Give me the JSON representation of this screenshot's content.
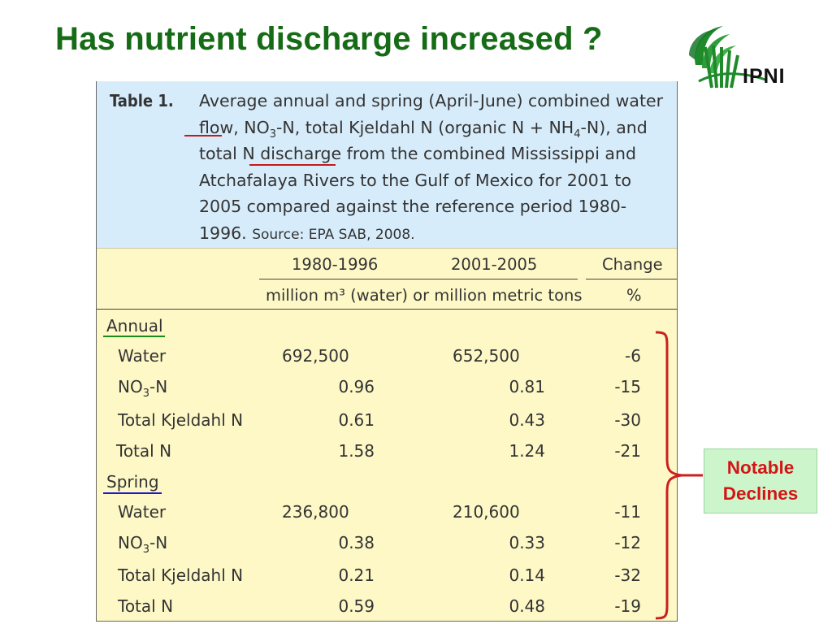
{
  "slide": {
    "title": "Has nutrient discharge increased ?",
    "logo_text": "IPNI"
  },
  "table": {
    "label": "Table 1.",
    "caption_lines": [
      "Average annual and spring (April-June) combined water",
      "flow, NO3-N, total Kjeldahl N (organic N + NH4-N), and",
      "total N discharge from the combined Mississippi and",
      "Atchafalaya Rivers to the Gulf of Mexico for 2001 to",
      "2005 compared against the reference period 1980-",
      "1996."
    ],
    "source": "Source: EPA SAB, 2008.",
    "headers": {
      "period1": "1980-1996",
      "period2": "2001-2005",
      "change": "Change",
      "units": "million m³ (water) or million metric tons",
      "change_units": "%"
    },
    "sections": [
      {
        "name": "Annual",
        "underline_color": "#1a8a1a",
        "rows": [
          {
            "label": "Water",
            "v1": "692,500",
            "v2": "652,500",
            "change": "-6"
          },
          {
            "label": "NO3-N",
            "v1": "0.96",
            "v2": "0.81",
            "change": "-15"
          },
          {
            "label": "Total Kjeldahl N",
            "v1": "0.61",
            "v2": "0.43",
            "change": "-30"
          },
          {
            "label": "Total N",
            "v1": "1.58",
            "v2": "1.24",
            "change": "-21"
          }
        ]
      },
      {
        "name": "Spring",
        "underline_color": "#1a1acc",
        "rows": [
          {
            "label": "Water",
            "v1": "236,800",
            "v2": "210,600",
            "change": "-11"
          },
          {
            "label": "NO3-N",
            "v1": "0.38",
            "v2": "0.33",
            "change": "-12"
          },
          {
            "label": "Total Kjeldahl N",
            "v1": "0.21",
            "v2": "0.14",
            "change": "-32"
          },
          {
            "label": "Total N",
            "v1": "0.59",
            "v2": "0.48",
            "change": "-19"
          }
        ]
      }
    ]
  },
  "annotation": {
    "line1": "Notable",
    "line2": "Declines",
    "bracket_color": "#cc1f1f"
  }
}
